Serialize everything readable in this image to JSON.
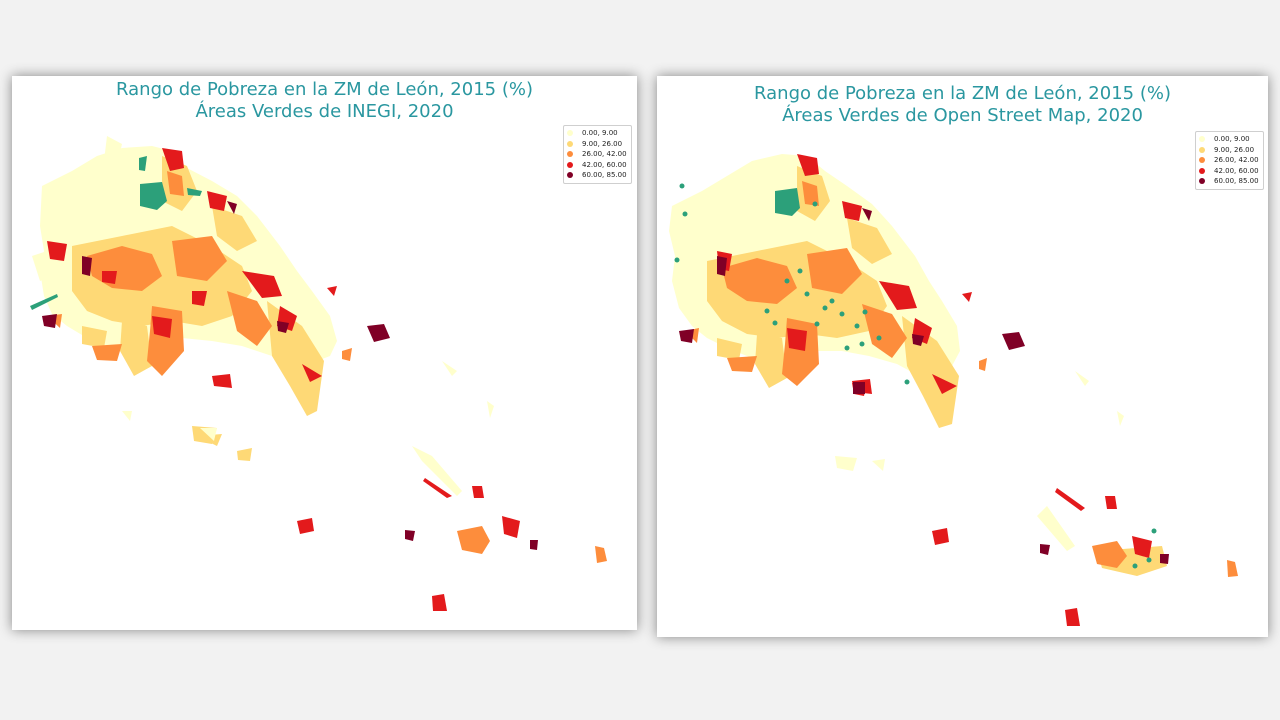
{
  "colors": {
    "class_1": "#ffffcc",
    "class_2": "#fed976",
    "class_3": "#fd8d3c",
    "class_4": "#e31a1c",
    "class_5": "#800026",
    "green_areas": "#2ca07a",
    "title_color": "#2a97a0"
  },
  "legend_items": [
    {
      "label": "0.00,  9.00",
      "color": "#ffffcc"
    },
    {
      "label": "9.00, 26.00",
      "color": "#fed976"
    },
    {
      "label": "26.00, 42.00",
      "color": "#fd8d3c"
    },
    {
      "label": "42.00, 60.00",
      "color": "#e31a1c"
    },
    {
      "label": "60.00, 85.00",
      "color": "#800026"
    }
  ],
  "maps": [
    {
      "title_line1": "Rango de Pobreza en la ZM de León, 2015 (%)",
      "title_line2": "Áreas Verdes de INEGI, 2020"
    },
    {
      "title_line1": "Rango de Pobreza en la ZM de León, 2015 (%)",
      "title_line2": "Áreas Verdes de Open Street Map, 2020"
    }
  ]
}
